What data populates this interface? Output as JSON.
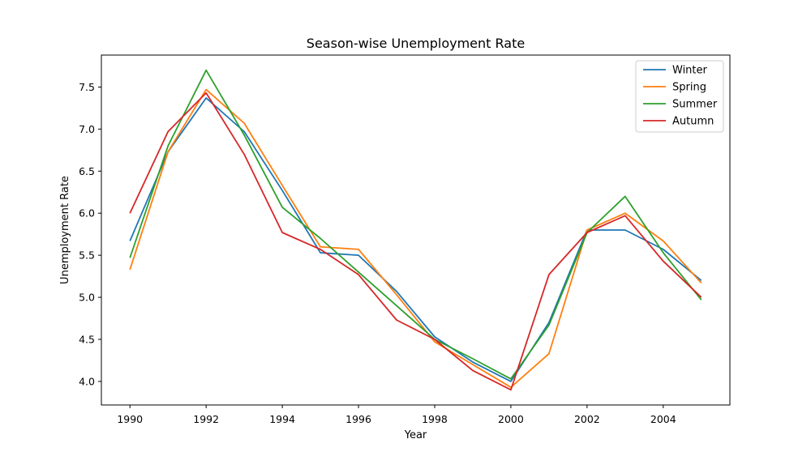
{
  "chart_data": {
    "type": "line",
    "title": "Season-wise Unemployment Rate",
    "xlabel": "Year",
    "ylabel": "Unemployment Rate",
    "x": [
      1990,
      1991,
      1992,
      1993,
      1994,
      1995,
      1996,
      1997,
      1998,
      1999,
      2000,
      2001,
      2002,
      2003,
      2004,
      2005
    ],
    "xlim": [
      1989.25,
      2005.75
    ],
    "ylim": [
      3.72,
      7.88
    ],
    "xticks": [
      1990,
      1992,
      1994,
      1996,
      1998,
      2000,
      2002,
      2004
    ],
    "yticks": [
      4.0,
      4.5,
      5.0,
      5.5,
      6.0,
      6.5,
      7.0,
      7.5
    ],
    "legend_position": "top-right",
    "grid": false,
    "series": [
      {
        "name": "Winter",
        "color": "#1f77b4",
        "values": [
          5.67,
          6.73,
          7.37,
          6.97,
          6.27,
          5.53,
          5.5,
          5.07,
          4.53,
          4.23,
          4.0,
          4.7,
          5.8,
          5.8,
          5.57,
          5.2
        ]
      },
      {
        "name": "Spring",
        "color": "#ff7f0e",
        "values": [
          5.33,
          6.73,
          7.47,
          7.07,
          6.33,
          5.6,
          5.57,
          5.03,
          4.47,
          4.2,
          3.93,
          4.33,
          5.8,
          6.0,
          5.67,
          5.17
        ]
      },
      {
        "name": "Summer",
        "color": "#2ca02c",
        "values": [
          5.47,
          6.8,
          7.7,
          6.93,
          6.07,
          5.7,
          5.3,
          4.9,
          4.5,
          4.27,
          4.03,
          4.67,
          5.77,
          6.2,
          5.53,
          4.97
        ]
      },
      {
        "name": "Autumn",
        "color": "#d62728",
        "values": [
          6.0,
          6.97,
          7.43,
          6.7,
          5.77,
          5.57,
          5.27,
          4.73,
          4.5,
          4.13,
          3.9,
          5.27,
          5.77,
          5.97,
          5.43,
          5.0
        ]
      }
    ]
  }
}
